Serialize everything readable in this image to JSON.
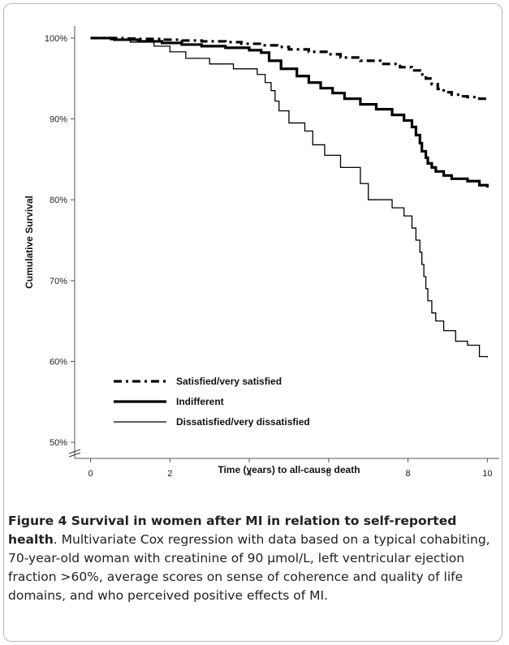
{
  "chart_data": {
    "type": "line",
    "xlabel": "Time (years) to all-cause death",
    "ylabel": "Cumulative Survival",
    "xlim": [
      -0.4,
      10.3
    ],
    "ylim": [
      0.48,
      1.015
    ],
    "axis_break": "y",
    "x_ticks": [
      0,
      2,
      4,
      6,
      8,
      10
    ],
    "x_tick_labels": [
      "0",
      "2",
      "4",
      "6",
      "8",
      "10"
    ],
    "y_ticks": [
      0.5,
      0.6,
      0.7,
      0.8,
      0.9,
      1.0
    ],
    "y_tick_labels": [
      "50%",
      "60%",
      "70%",
      "80%",
      "90%",
      "100%"
    ],
    "legend_position": "bottom-left",
    "series": [
      {
        "name": "Satisfied/very satisfied",
        "style": "dash-dot",
        "color": "#000000",
        "x": [
          0,
          0.8,
          1.2,
          1.8,
          2.3,
          2.8,
          3.4,
          3.8,
          4.3,
          4.7,
          5.0,
          5.5,
          6.0,
          6.3,
          6.8,
          7.3,
          7.8,
          8.1,
          8.3,
          8.45,
          8.6,
          8.75,
          8.9,
          9.1,
          9.3,
          9.5,
          9.8,
          10.0
        ],
        "y": [
          1.0,
          0.9995,
          0.999,
          0.998,
          0.997,
          0.996,
          0.995,
          0.993,
          0.991,
          0.989,
          0.986,
          0.983,
          0.98,
          0.976,
          0.972,
          0.968,
          0.964,
          0.96,
          0.955,
          0.95,
          0.943,
          0.937,
          0.933,
          0.93,
          0.928,
          0.927,
          0.925,
          0.922
        ]
      },
      {
        "name": "Indifferent",
        "style": "thick",
        "color": "#000000",
        "x": [
          0,
          0.6,
          1.2,
          1.8,
          2.3,
          2.8,
          3.4,
          4.0,
          4.3,
          4.5,
          4.8,
          5.2,
          5.5,
          5.8,
          6.1,
          6.4,
          6.8,
          7.2,
          7.6,
          7.9,
          8.1,
          8.2,
          8.3,
          8.35,
          8.45,
          8.5,
          8.6,
          8.7,
          8.9,
          9.1,
          9.5,
          9.8,
          10.0
        ],
        "y": [
          1.0,
          0.998,
          0.996,
          0.994,
          0.992,
          0.99,
          0.988,
          0.985,
          0.982,
          0.972,
          0.962,
          0.953,
          0.945,
          0.938,
          0.932,
          0.925,
          0.918,
          0.912,
          0.905,
          0.898,
          0.89,
          0.88,
          0.87,
          0.86,
          0.852,
          0.845,
          0.84,
          0.835,
          0.83,
          0.826,
          0.823,
          0.818,
          0.815
        ]
      },
      {
        "name": "Dissatisfied/very dissatisfied",
        "style": "thin",
        "color": "#000000",
        "x": [
          0,
          0.5,
          1.0,
          1.6,
          2.0,
          2.4,
          3.0,
          3.6,
          4.2,
          4.4,
          4.55,
          4.65,
          4.75,
          5.0,
          5.4,
          5.6,
          5.9,
          6.3,
          6.8,
          7.0,
          7.6,
          7.9,
          8.1,
          8.2,
          8.3,
          8.35,
          8.4,
          8.45,
          8.5,
          8.6,
          8.7,
          8.9,
          9.2,
          9.5,
          9.8,
          10.0
        ],
        "y": [
          1.0,
          0.998,
          0.995,
          0.99,
          0.983,
          0.975,
          0.968,
          0.962,
          0.955,
          0.945,
          0.935,
          0.922,
          0.91,
          0.895,
          0.885,
          0.868,
          0.855,
          0.84,
          0.82,
          0.8,
          0.79,
          0.78,
          0.765,
          0.75,
          0.735,
          0.72,
          0.705,
          0.69,
          0.675,
          0.66,
          0.65,
          0.638,
          0.625,
          0.62,
          0.606,
          0.605
        ]
      }
    ]
  },
  "caption": {
    "title": "Figure 4 Survival in women after MI in relation to self-reported health",
    "body": ". Multivariate Cox regression with data based on a typical cohabiting, 70-year-old woman with creatinine of 90 µmol/L, left ventricular ejection fraction >60%, average scores on sense of coherence and quality of life domains, and who perceived positive effects of MI."
  }
}
